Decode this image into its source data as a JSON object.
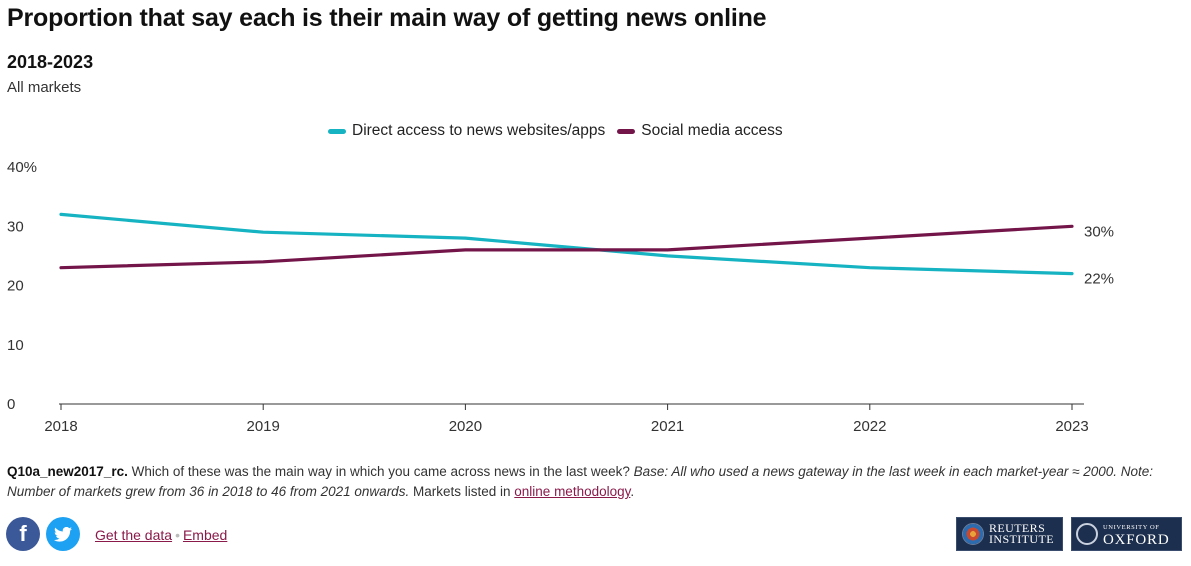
{
  "header": {
    "title": "Proportion that say each is their main way of getting news online",
    "subtitle": "2018-2023",
    "scope": "All markets"
  },
  "legend": {
    "direct_label": "Direct access to news websites/apps",
    "social_label": "Social media access"
  },
  "colors": {
    "direct": "#16b3c2",
    "social": "#74154a",
    "axis": "#333333",
    "link": "#8a1a4a"
  },
  "chart_data": {
    "type": "line",
    "title": "Proportion that say each is their main way of getting news online",
    "subtitle": "2018-2023",
    "categories": [
      "2018",
      "2019",
      "2020",
      "2021",
      "2022",
      "2023"
    ],
    "series": [
      {
        "name": "Direct access to news websites/apps",
        "values": [
          32,
          29,
          28,
          25,
          23,
          22
        ],
        "end_label": "22%"
      },
      {
        "name": "Social media access",
        "values": [
          23,
          24,
          26,
          26,
          28,
          30
        ],
        "end_label": "30%"
      }
    ],
    "ylim": [
      0,
      40
    ],
    "yticks": [
      0,
      10,
      20,
      30,
      40
    ],
    "ytick_labels": [
      "0",
      "10",
      "20",
      "30",
      "40%"
    ],
    "legend_position": "top-center"
  },
  "notes": {
    "question_code": "Q10a_new2017_rc.",
    "question_text": "Which of these was the main way in which you came across news in the last week?",
    "base_text": "Base: All who used a news gateway in the last week in each market-year ≈ 2000. Note: Number of markets grew from 36 in 2018 to 46 from 2021 onwards.",
    "markets_text": "Markets listed in",
    "methodology_link": "online methodology",
    "end_period": "."
  },
  "footer": {
    "facebook_icon": "facebook-icon",
    "twitter_icon": "twitter-icon",
    "get_data_label": "Get the data",
    "separator": "•",
    "embed_label": "Embed",
    "reuters_logo_line1": "REUTERS",
    "reuters_logo_line2": "INSTITUTE",
    "oxford_logo_line1": "UNIVERSITY OF",
    "oxford_logo_line2": "OXFORD"
  }
}
